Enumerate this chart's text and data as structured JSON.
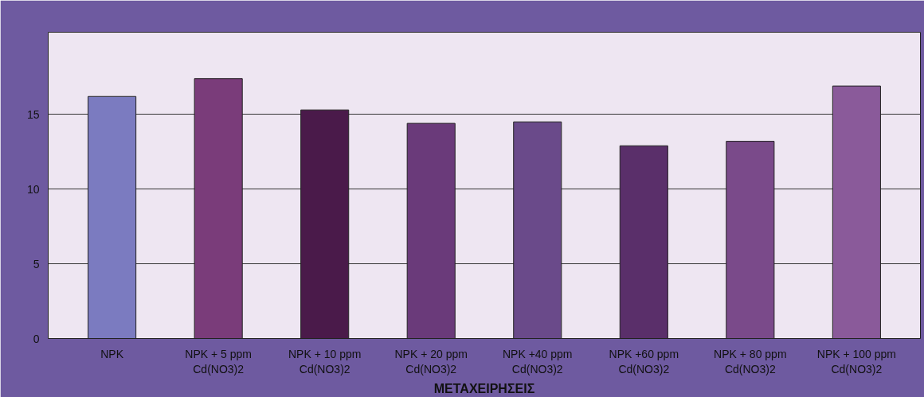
{
  "chart_data": {
    "type": "bar",
    "xlabel": "ΜΕΤΑΧΕΙΡΗΣΕΙΣ",
    "categories": [
      "NPK",
      "NPK + 5 ppm\nCd(NO3)2",
      "NPK + 10 ppm\nCd(NO3)2",
      "NPK + 20 ppm\nCd(NO3)2",
      "NPK +40 ppm\nCd(NO3)2",
      "NPK +60 ppm\nCd(NO3)2",
      "NPK + 80 ppm\nCd(NO3)2",
      "NPK + 100 ppm\nCd(NO3)2"
    ],
    "values": [
      16.2,
      17.4,
      15.3,
      14.4,
      14.5,
      12.9,
      13.2,
      16.9
    ],
    "colors": [
      "#7b7bc0",
      "#7a3c7a",
      "#4a1a4a",
      "#6a3a7a",
      "#6a4a8a",
      "#5a2f6a",
      "#7a4a8a",
      "#8a5a9a"
    ],
    "ylim": [
      0,
      20.5
    ],
    "yticks": [
      0,
      5,
      10,
      15
    ],
    "grid": "y"
  }
}
